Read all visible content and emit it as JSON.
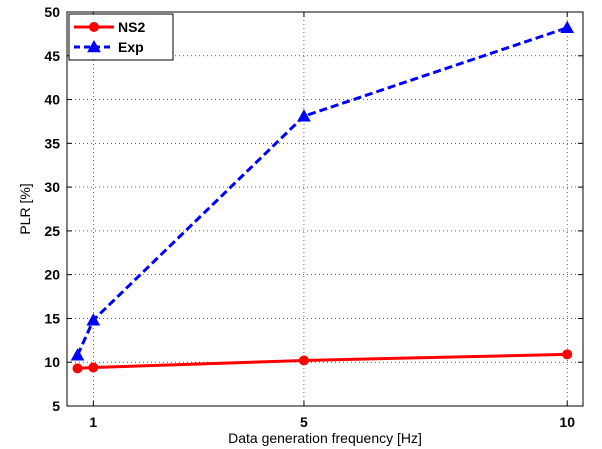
{
  "chart_data": {
    "type": "line",
    "xlabel": "Data generation frequency [Hz]",
    "ylabel": "PLR [%]",
    "xlim": [
      0.5,
      10.3
    ],
    "ylim": [
      5,
      50
    ],
    "xticks": [
      1,
      5,
      10
    ],
    "yticks": [
      5,
      10,
      15,
      20,
      25,
      30,
      35,
      40,
      45,
      50
    ],
    "grid": true,
    "legend_position": "top-left",
    "series": [
      {
        "name": "NS2",
        "color": "#ff0000",
        "line_style": "solid",
        "marker": "circle",
        "x": [
          0.7,
          1,
          5,
          10
        ],
        "y": [
          9.3,
          9.4,
          10.2,
          10.9
        ]
      },
      {
        "name": "Exp",
        "color": "#0000ff",
        "line_style": "dashed",
        "marker": "triangle",
        "x": [
          0.7,
          1,
          5,
          10
        ],
        "y": [
          10.8,
          14.8,
          38.1,
          48.2
        ]
      }
    ]
  }
}
